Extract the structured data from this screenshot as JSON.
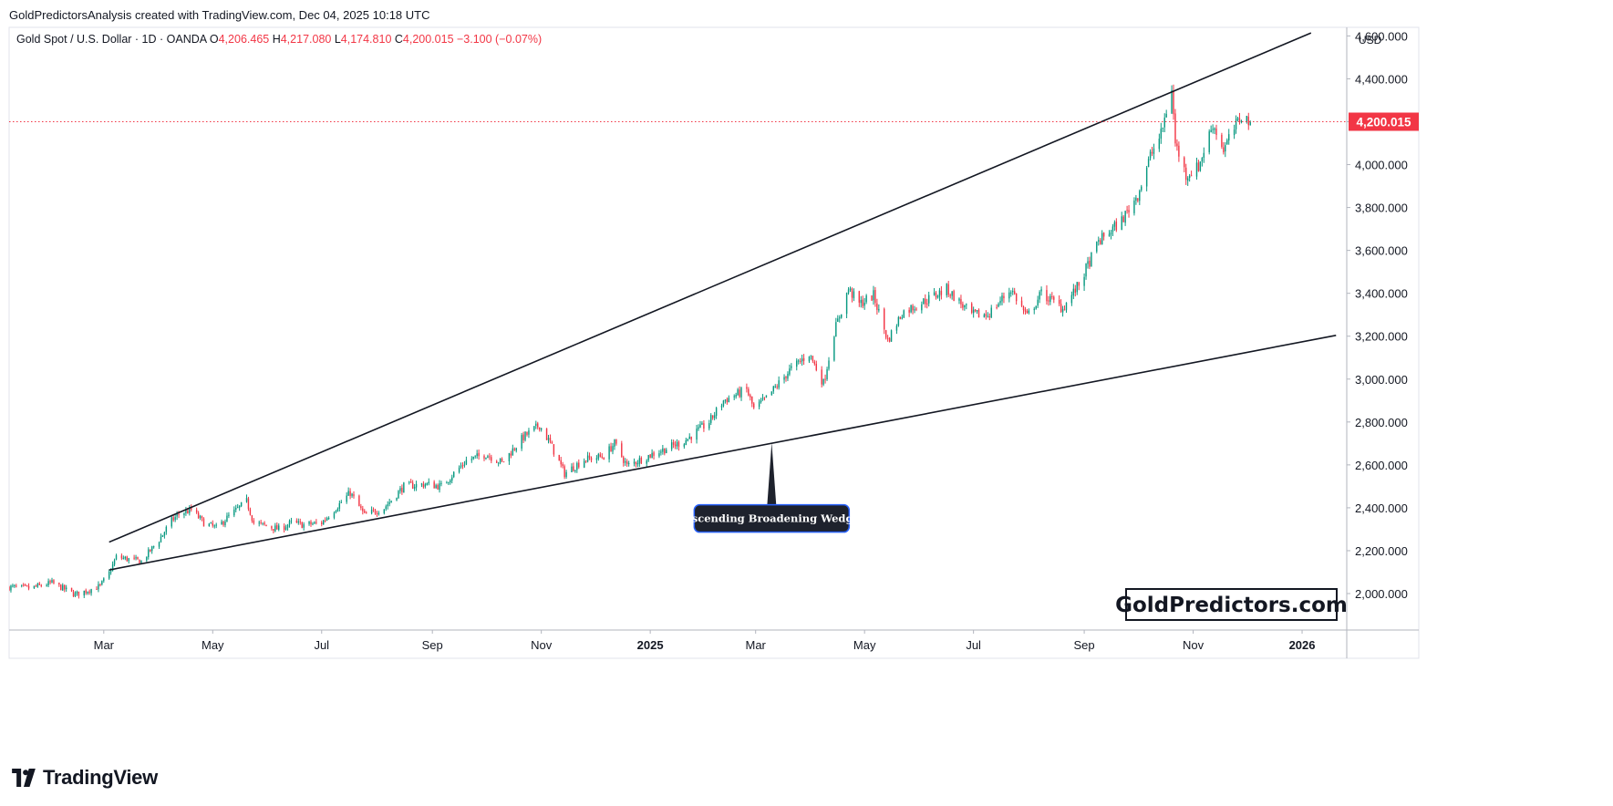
{
  "attribution": "GoldPredictorsAnalysis created with TradingView.com, Dec 04, 2025 10:18 UTC",
  "branding": {
    "footer_logo_text": "TradingView",
    "watermark": "GoldPredictors.com"
  },
  "colors": {
    "bull": "#089981",
    "bear": "#f23645",
    "last_price": "#f23645",
    "trendline": "#131722",
    "callout_bg": "#1e222d"
  },
  "chart_data": {
    "type": "candlestick",
    "symbol_line": {
      "name": "Gold Spot / U.S. Dollar · 1D · OANDA",
      "open": "4,206.465",
      "high": "4,217.080",
      "low": "4,174.810",
      "close": "4,200.015",
      "change": "−3.100 (−0.07%)"
    },
    "currency": "USD",
    "last_price": 4200.015,
    "last_price_label": "4,200.015",
    "ylim": [
      1830,
      4640
    ],
    "y_ticks": [
      {
        "value": 4600,
        "label": "4,600.000"
      },
      {
        "value": 4400,
        "label": "4,400.000"
      },
      {
        "value": 4200,
        "label": "4,200.000"
      },
      {
        "value": 4000,
        "label": "4,000.000"
      },
      {
        "value": 3800,
        "label": "3,800.000"
      },
      {
        "value": 3600,
        "label": "3,600.000"
      },
      {
        "value": 3400,
        "label": "3,400.000"
      },
      {
        "value": 3200,
        "label": "3,200.000"
      },
      {
        "value": 3000,
        "label": "3,000.000"
      },
      {
        "value": 2800,
        "label": "2,800.000"
      },
      {
        "value": 2600,
        "label": "2,600.000"
      },
      {
        "value": 2400,
        "label": "2,400.000"
      },
      {
        "value": 2200,
        "label": "2,200.000"
      },
      {
        "value": 2000,
        "label": "2,000.000"
      }
    ],
    "xlim": [
      "2024-01-08",
      "2026-01-26"
    ],
    "x_ticks": [
      {
        "date": "2024-03-01",
        "label": "Mar",
        "bold": false
      },
      {
        "date": "2024-05-01",
        "label": "May",
        "bold": false
      },
      {
        "date": "2024-07-01",
        "label": "Jul",
        "bold": false
      },
      {
        "date": "2024-09-01",
        "label": "Sep",
        "bold": false
      },
      {
        "date": "2024-11-01",
        "label": "Nov",
        "bold": false
      },
      {
        "date": "2025-01-01",
        "label": "2025",
        "bold": true
      },
      {
        "date": "2025-03-01",
        "label": "Mar",
        "bold": false
      },
      {
        "date": "2025-05-01",
        "label": "May",
        "bold": false
      },
      {
        "date": "2025-07-01",
        "label": "Jul",
        "bold": false
      },
      {
        "date": "2025-09-01",
        "label": "Sep",
        "bold": false
      },
      {
        "date": "2025-11-01",
        "label": "Nov",
        "bold": false
      },
      {
        "date": "2026-01-01",
        "label": "2026",
        "bold": true
      }
    ],
    "price_path": [
      [
        "2024-01-08",
        2030
      ],
      [
        "2024-01-20",
        2025
      ],
      [
        "2024-02-01",
        2050
      ],
      [
        "2024-02-14",
        1995
      ],
      [
        "2024-02-28",
        2035
      ],
      [
        "2024-03-04",
        2095
      ],
      [
        "2024-03-08",
        2170
      ],
      [
        "2024-03-15",
        2160
      ],
      [
        "2024-03-22",
        2150
      ],
      [
        "2024-04-01",
        2250
      ],
      [
        "2024-04-08",
        2340
      ],
      [
        "2024-04-12",
        2370
      ],
      [
        "2024-04-19",
        2390
      ],
      [
        "2024-04-26",
        2330
      ],
      [
        "2024-05-03",
        2305
      ],
      [
        "2024-05-10",
        2360
      ],
      [
        "2024-05-20",
        2430
      ],
      [
        "2024-05-24",
        2330
      ],
      [
        "2024-06-07",
        2300
      ],
      [
        "2024-06-14",
        2330
      ],
      [
        "2024-06-21",
        2320
      ],
      [
        "2024-07-01",
        2330
      ],
      [
        "2024-07-17",
        2470
      ],
      [
        "2024-07-25",
        2365
      ],
      [
        "2024-08-05",
        2400
      ],
      [
        "2024-08-16",
        2500
      ],
      [
        "2024-08-28",
        2510
      ],
      [
        "2024-09-06",
        2500
      ],
      [
        "2024-09-20",
        2620
      ],
      [
        "2024-10-01",
        2650
      ],
      [
        "2024-10-10",
        2610
      ],
      [
        "2024-10-22",
        2730
      ],
      [
        "2024-10-31",
        2785
      ],
      [
        "2024-11-06",
        2700
      ],
      [
        "2024-11-14",
        2560
      ],
      [
        "2024-11-25",
        2625
      ],
      [
        "2024-12-06",
        2640
      ],
      [
        "2024-12-12",
        2700
      ],
      [
        "2024-12-19",
        2595
      ],
      [
        "2025-01-02",
        2650
      ],
      [
        "2025-01-20",
        2710
      ],
      [
        "2025-02-03",
        2800
      ],
      [
        "2025-02-11",
        2900
      ],
      [
        "2025-02-24",
        2950
      ],
      [
        "2025-02-28",
        2860
      ],
      [
        "2025-03-07",
        2910
      ],
      [
        "2025-03-20",
        3040
      ],
      [
        "2025-03-31",
        3120
      ],
      [
        "2025-04-08",
        2980
      ],
      [
        "2025-04-14",
        3220
      ],
      [
        "2025-04-22",
        3420
      ],
      [
        "2025-04-28",
        3350
      ],
      [
        "2025-05-06",
        3390
      ],
      [
        "2025-05-14",
        3180
      ],
      [
        "2025-05-22",
        3310
      ],
      [
        "2025-06-05",
        3370
      ],
      [
        "2025-06-16",
        3420
      ],
      [
        "2025-06-30",
        3300
      ],
      [
        "2025-07-09",
        3300
      ],
      [
        "2025-07-22",
        3420
      ],
      [
        "2025-07-31",
        3290
      ],
      [
        "2025-08-08",
        3400
      ],
      [
        "2025-08-20",
        3330
      ],
      [
        "2025-08-29",
        3440
      ],
      [
        "2025-09-09",
        3640
      ],
      [
        "2025-09-22",
        3740
      ],
      [
        "2025-10-01",
        3860
      ],
      [
        "2025-10-08",
        4040
      ],
      [
        "2025-10-14",
        4140
      ],
      [
        "2025-10-20",
        4360
      ],
      [
        "2025-10-22",
        4100
      ],
      [
        "2025-10-28",
        3950
      ],
      [
        "2025-11-04",
        3990
      ],
      [
        "2025-11-12",
        4190
      ],
      [
        "2025-11-18",
        4070
      ],
      [
        "2025-11-28",
        4230
      ],
      [
        "2025-12-03",
        4200
      ]
    ],
    "trendlines": [
      {
        "name": "upper",
        "start": [
          "2024-03-04",
          2240
        ],
        "end": [
          "2026-01-06",
          4614
        ]
      },
      {
        "name": "lower",
        "start": [
          "2024-03-04",
          2110
        ],
        "end": [
          "2026-01-20",
          3204
        ]
      }
    ],
    "annotations": [
      {
        "text": "Ascending Broadening Wedge",
        "anchor": [
          "2025-03-10",
          2704
        ],
        "label_y": 2350
      }
    ]
  }
}
